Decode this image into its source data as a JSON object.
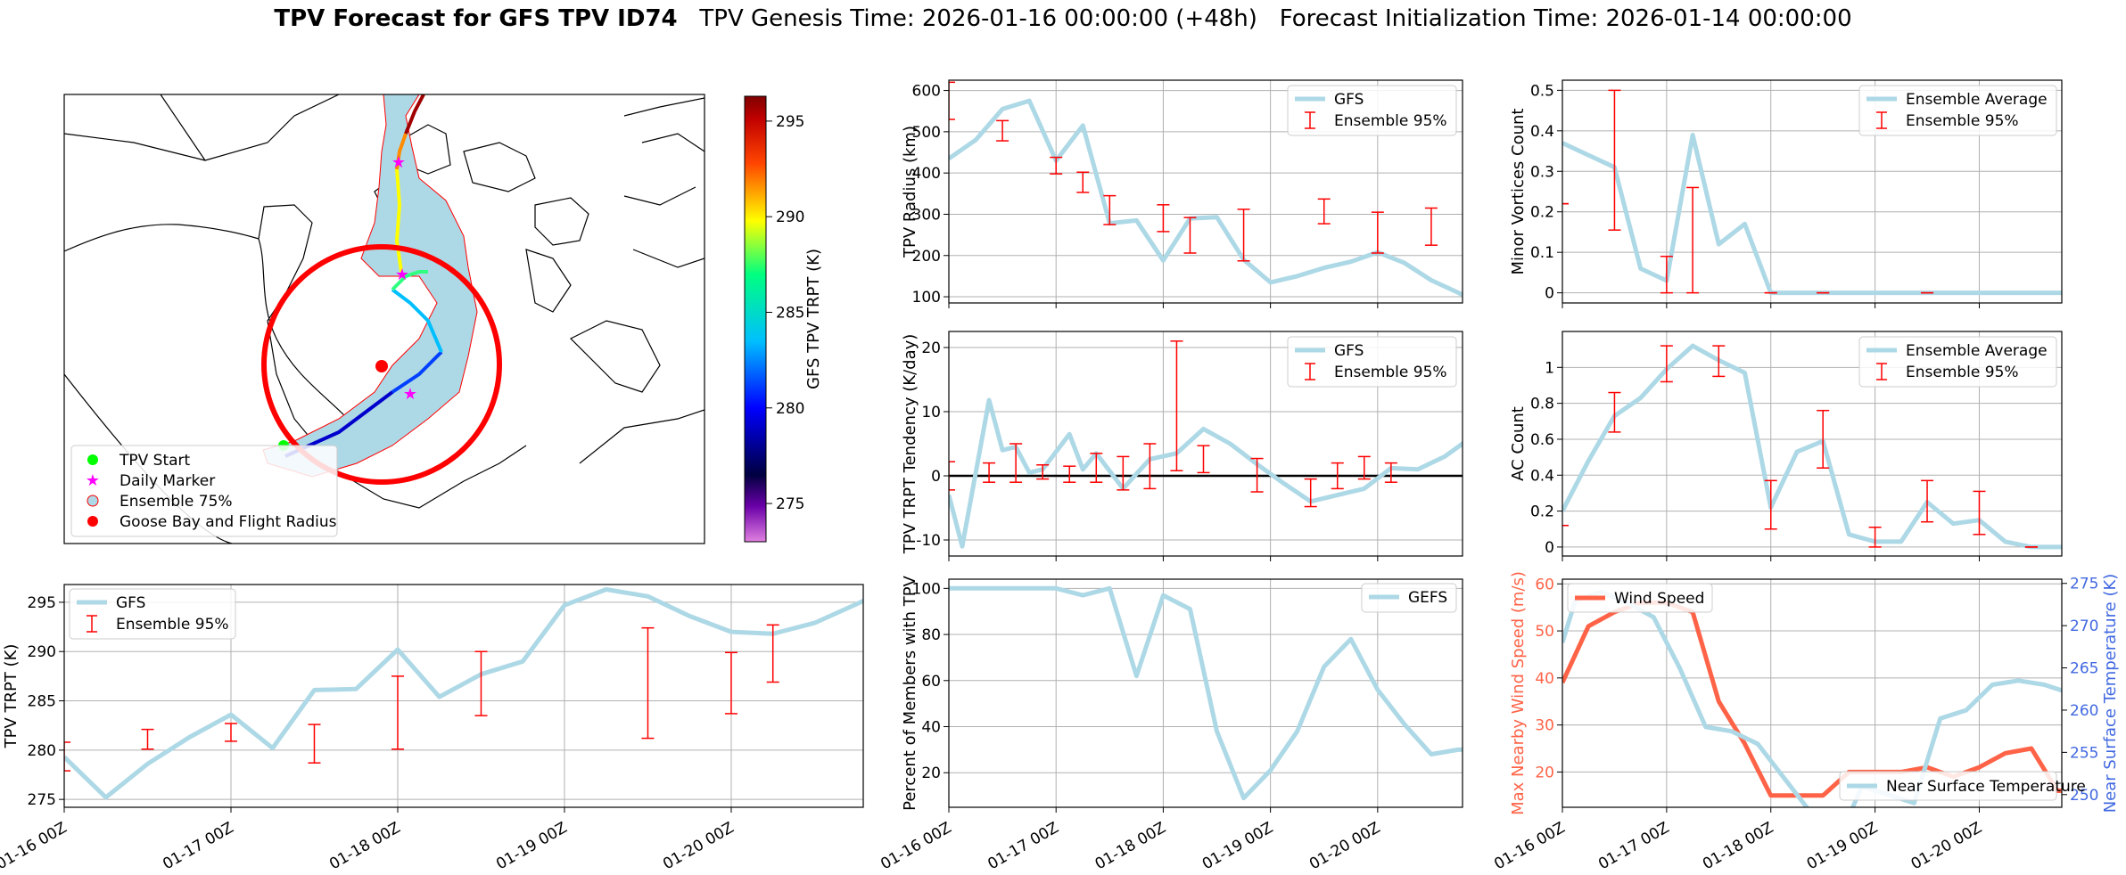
{
  "page": {
    "title_bold": "TPV Forecast for GFS TPV ID74",
    "title_genesis": "TPV Genesis Time: 2026-01-16 00:00:00 (+48h)",
    "title_init": "Forecast Initialization Time: 2026-01-14 00:00:00"
  },
  "colors": {
    "light_blue": "#add8e6",
    "error_red": "#ff0000",
    "wind_red": "#ff6347",
    "temp_axis_blue": "#4169e1",
    "grid": "#b0b0b0"
  },
  "time_ticks": [
    "01-16 00Z",
    "01-17 00Z",
    "01-18 00Z",
    "01-19 00Z",
    "01-20 00Z"
  ],
  "chart_data": [
    {
      "id": "map",
      "type": "map",
      "colorbar": {
        "label": "GFS TPV TRPT (K)",
        "ticks": [
          275,
          280,
          285,
          290,
          295
        ],
        "range": [
          273,
          296.3
        ]
      },
      "legend": {
        "placement": "lower-left",
        "entries": [
          {
            "label": "TPV Start",
            "marker": "circle",
            "color": "#00ff00"
          },
          {
            "label": "Daily Marker",
            "marker": "star",
            "color": "#ff00ff"
          },
          {
            "label": "Ensemble 75%",
            "marker": "circle",
            "color": "#add8e6",
            "edge": "#ff0000"
          },
          {
            "label": "Goose Bay and Flight Radius",
            "marker": "circle",
            "color": "#ff0000"
          }
        ]
      }
    },
    {
      "id": "trpt",
      "type": "line",
      "ylabel": "TPV TRPT (K)",
      "ylim": [
        274.2,
        296.8
      ],
      "yticks": [
        275,
        280,
        285,
        290,
        295
      ],
      "xlim": [
        0,
        115
      ],
      "legend": {
        "placement": "upper-left"
      },
      "series": [
        {
          "name": "GFS",
          "x": [
            0,
            6,
            12,
            18,
            24,
            30,
            36,
            42,
            48,
            54,
            60,
            66,
            72,
            78,
            84,
            90,
            96,
            102,
            108,
            114,
            120
          ],
          "values": [
            279.3,
            275.2,
            278.6,
            281.3,
            283.6,
            280.2,
            286.1,
            286.2,
            290.2,
            285.4,
            287.7,
            289.0,
            294.7,
            296.3,
            295.6,
            293.6,
            292.0,
            291.8,
            292.9,
            294.8,
            296.8
          ]
        }
      ],
      "errorbars": {
        "name": "Ensemble 95%",
        "x": [
          0,
          12,
          24,
          36,
          48,
          60,
          84,
          96,
          102
        ],
        "low": [
          277.9,
          280.1,
          280.9,
          278.7,
          280.1,
          283.5,
          281.2,
          283.7,
          286.9
        ],
        "high": [
          280.8,
          282.1,
          282.7,
          282.6,
          287.5,
          290.0,
          292.4,
          289.9,
          292.7
        ]
      }
    },
    {
      "id": "radius",
      "type": "line",
      "ylabel": "TPV Radius (km)",
      "ylim": [
        85,
        625
      ],
      "yticks": [
        100,
        200,
        300,
        400,
        500,
        600
      ],
      "xlim": [
        0,
        115
      ],
      "legend": {
        "placement": "upper-right"
      },
      "series": [
        {
          "name": "GFS",
          "x": [
            0,
            6,
            12,
            18,
            24,
            30,
            36,
            42,
            48,
            54,
            60,
            66,
            72,
            78,
            84,
            90,
            96,
            102,
            108,
            114,
            120
          ],
          "values": [
            435,
            480,
            555,
            575,
            430,
            515,
            278,
            285,
            188,
            290,
            293,
            190,
            135,
            150,
            170,
            185,
            208,
            182,
            140,
            110,
            80
          ]
        }
      ],
      "errorbars": {
        "name": "Ensemble 95%",
        "x": [
          0,
          12,
          24,
          30,
          36,
          48,
          54,
          66,
          84,
          96,
          108
        ],
        "low": [
          530,
          478,
          398,
          353,
          275,
          258,
          206,
          187,
          277,
          206,
          225
        ],
        "high": [
          620,
          527,
          438,
          402,
          345,
          323,
          292,
          312,
          337,
          305,
          315
        ]
      }
    },
    {
      "id": "minor",
      "type": "line",
      "ylabel": "Minor Vortices Count",
      "ylim": [
        -0.025,
        0.525
      ],
      "yticks": [
        0.0,
        0.1,
        0.2,
        0.3,
        0.4,
        0.5
      ],
      "xlim": [
        0,
        115
      ],
      "legend": {
        "placement": "upper-right"
      },
      "series": [
        {
          "name": "Ensemble Average",
          "x": [
            0,
            6,
            12,
            18,
            24,
            30,
            36,
            42,
            48,
            54,
            60,
            66,
            72,
            78,
            84,
            90,
            96,
            102,
            108,
            114,
            120
          ],
          "values": [
            0.37,
            0.34,
            0.31,
            0.06,
            0.03,
            0.39,
            0.12,
            0.17,
            0.0,
            0.0,
            0.0,
            0.0,
            0.0,
            0.0,
            0.0,
            0.0,
            0.0,
            0.0,
            0.0,
            0.0,
            0.0
          ]
        }
      ],
      "errorbars": {
        "name": "Ensemble 95%",
        "x": [
          0,
          12,
          24,
          30,
          48,
          60,
          84
        ],
        "low": [
          0.22,
          0.155,
          0.0,
          0.0,
          0.0,
          0.0,
          0.0
        ],
        "high": [
          0.22,
          0.5,
          0.09,
          0.26,
          0.0,
          0.0,
          0.0
        ]
      }
    },
    {
      "id": "tendency",
      "type": "line",
      "ylabel": "TPV TRPT Tendency (K/day)",
      "ylim": [
        -12.5,
        22.5
      ],
      "yticks": [
        -10,
        0,
        10,
        20
      ],
      "xlim": [
        0,
        115
      ],
      "hline": 0,
      "legend": {
        "placement": "upper-right"
      },
      "series": [
        {
          "name": "GFS",
          "x": [
            0,
            3,
            9,
            12,
            15,
            18,
            21,
            27,
            30,
            33,
            39,
            45,
            51,
            57,
            63,
            69,
            75,
            81,
            87,
            93,
            99,
            105,
            111,
            117
          ],
          "values": [
            -3,
            -11,
            11.8,
            4,
            4.5,
            0.5,
            1,
            6.5,
            1,
            3.5,
            -2,
            2.6,
            3.5,
            7.3,
            5,
            1.8,
            -1.2,
            -4,
            -3,
            -2,
            1.2,
            1,
            3,
            6
          ]
        }
      ],
      "errorbars": {
        "name": "Ensemble 95%",
        "x": [
          0,
          9,
          15,
          21,
          27,
          33,
          39,
          45,
          51,
          57,
          69,
          81,
          87,
          93,
          99
        ],
        "low": [
          -2.2,
          -1,
          -1,
          -0.5,
          -1,
          -1,
          -2.2,
          -2,
          0.8,
          0.5,
          -2.5,
          -4.8,
          -2,
          -0.5,
          -1
        ],
        "high": [
          2.2,
          2,
          5,
          1.7,
          1.5,
          3.5,
          3,
          5,
          21,
          4.7,
          2.7,
          -0.5,
          2,
          3,
          2
        ]
      }
    },
    {
      "id": "ac",
      "type": "line",
      "ylabel": "AC Count",
      "ylim": [
        -0.05,
        1.2
      ],
      "yticks": [
        0.0,
        0.2,
        0.4,
        0.6,
        0.8,
        1.0
      ],
      "xlim": [
        0,
        115
      ],
      "legend": {
        "placement": "upper-right"
      },
      "series": [
        {
          "name": "Ensemble Average",
          "x": [
            0,
            6,
            12,
            18,
            24,
            30,
            36,
            42,
            48,
            54,
            60,
            66,
            72,
            78,
            84,
            90,
            96,
            102,
            108,
            114,
            120
          ],
          "values": [
            0.2,
            0.48,
            0.73,
            0.83,
            0.99,
            1.12,
            1.04,
            0.97,
            0.22,
            0.53,
            0.59,
            0.07,
            0.03,
            0.03,
            0.25,
            0.13,
            0.15,
            0.03,
            0.0,
            0.0,
            0.0
          ]
        }
      ],
      "errorbars": {
        "name": "Ensemble 95%",
        "x": [
          0,
          12,
          24,
          36,
          48,
          60,
          72,
          84,
          96,
          108
        ],
        "low": [
          0.12,
          0.64,
          0.92,
          0.95,
          0.1,
          0.44,
          0.0,
          0.14,
          0.07,
          0.0
        ],
        "high": [
          0.12,
          0.86,
          1.12,
          1.12,
          0.37,
          0.76,
          0.11,
          0.37,
          0.31,
          0.0
        ]
      }
    },
    {
      "id": "percent",
      "type": "line",
      "ylabel": "Percent of Members with TPV",
      "ylim": [
        5,
        104
      ],
      "yticks": [
        20,
        40,
        60,
        80,
        100
      ],
      "xlim": [
        0,
        115
      ],
      "legend": {
        "placement": "upper-right"
      },
      "series": [
        {
          "name": "GEFS",
          "x": [
            0,
            6,
            12,
            18,
            24,
            30,
            36,
            42,
            48,
            54,
            60,
            66,
            72,
            78,
            84,
            90,
            96,
            102,
            108,
            114,
            120
          ],
          "values": [
            100,
            100,
            100,
            100,
            100,
            97,
            100,
            62,
            97,
            91,
            38,
            9,
            21,
            38,
            66,
            78,
            56,
            41,
            28,
            30,
            30
          ]
        }
      ]
    },
    {
      "id": "wind_temp",
      "type": "line",
      "ylabel": "Max Nearby Wind Speed (m/s)",
      "ylabel_right": "Near Surface Temperature (K)",
      "ylim": [
        12.5,
        61
      ],
      "yticks": [
        20,
        30,
        40,
        50,
        60
      ],
      "ylim_right": [
        248.5,
        275.5
      ],
      "yticks_right": [
        250,
        255,
        260,
        265,
        270,
        275
      ],
      "xlim": [
        0,
        115
      ],
      "series": [
        {
          "name": "Wind Speed",
          "axis": "left",
          "color": "#ff6347",
          "x": [
            0,
            6,
            12,
            18,
            24,
            30,
            36,
            42,
            48,
            54,
            60,
            66,
            72,
            78,
            84,
            90,
            96,
            102,
            108,
            114,
            120
          ],
          "values": [
            39,
            51,
            54,
            56,
            56,
            54,
            35,
            26,
            15,
            15,
            15,
            20,
            20,
            20,
            21,
            19,
            21,
            24,
            25,
            16,
            16
          ]
        },
        {
          "name": "Near Surface Temperature",
          "axis": "right",
          "color": "#add8e6",
          "x": [
            0,
            3,
            9,
            15,
            21,
            27,
            33,
            39,
            45,
            51,
            57,
            63,
            69,
            75,
            81,
            87,
            93,
            99,
            105,
            111,
            117
          ],
          "values": [
            268,
            273,
            274,
            272.7,
            271,
            265,
            258,
            257.5,
            256,
            252,
            248,
            244,
            251,
            250,
            249,
            259,
            260,
            263,
            263.5,
            263,
            262
          ]
        }
      ],
      "legend": {
        "placement": "upper-left / lower-right"
      }
    }
  ]
}
